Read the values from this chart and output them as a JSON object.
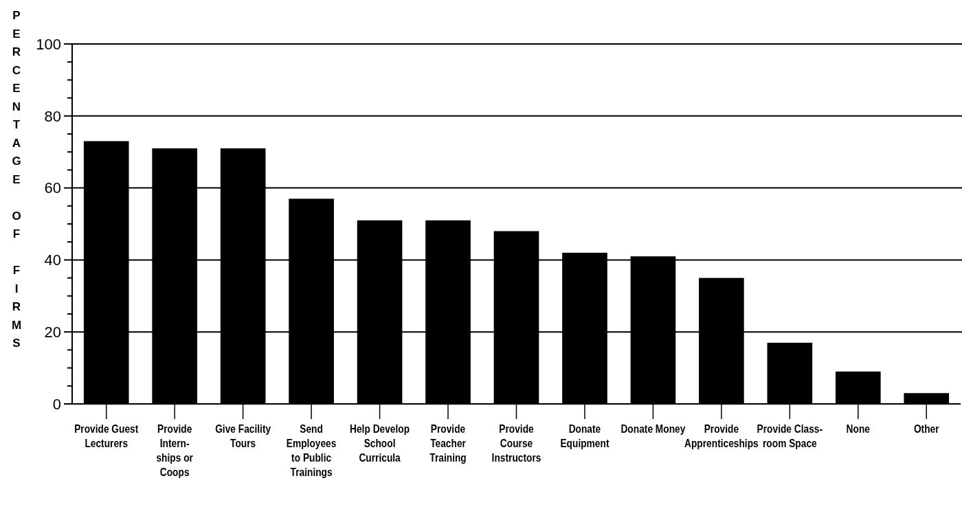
{
  "chart_data": {
    "type": "bar",
    "ylabel": "PERCENTAGE OF FIRMS",
    "categories": [
      "Provide Guest\nLecturers",
      "Provide Intern-\nships or Coops",
      "Give Facility\nTours",
      "Send Employees\nto Public Trainings",
      "Help Develop\nSchool Curricula",
      "Provide Teacher\nTraining",
      "Provide Course\nInstructors",
      "Donate\nEquipment",
      "Donate Money",
      "Provide\nApprenticeships",
      "Provide Class-\nroom Space",
      "None",
      "Other"
    ],
    "values": [
      73,
      71,
      71,
      57,
      51,
      51,
      48,
      42,
      41,
      35,
      17,
      9,
      3
    ],
    "color": "#000000",
    "ylim": [
      0,
      100
    ],
    "yticks": [
      0,
      {
        "value": 5,
        "label": null
      },
      {
        "value": 10,
        "label": null
      },
      {
        "value": 15,
        "label": null
      },
      20,
      {
        "value": 25,
        "label": null
      },
      {
        "value": 30,
        "label": null
      },
      {
        "value": 35,
        "label": null
      },
      40,
      {
        "value": 45,
        "label": null
      },
      {
        "value": 50,
        "label": null
      },
      {
        "value": 55,
        "label": null
      },
      60,
      {
        "value": 65,
        "label": null
      },
      {
        "value": 70,
        "label": null
      },
      {
        "value": 75,
        "label": null
      },
      80,
      {
        "value": 85,
        "label": null
      },
      {
        "value": 90,
        "label": null
      },
      {
        "value": 95,
        "label": null
      },
      100
    ],
    "grid": "y"
  }
}
